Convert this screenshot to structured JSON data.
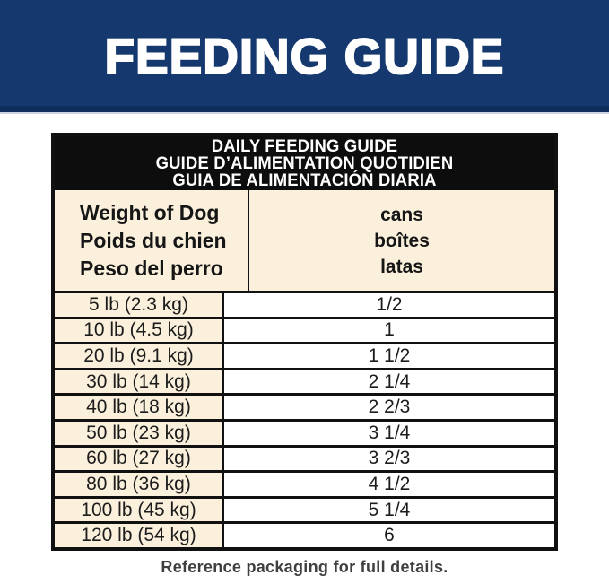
{
  "banner": {
    "title": "FEEDING GUIDE"
  },
  "table": {
    "title_lines": [
      "DAILY FEEDING GUIDE",
      "GUIDE D’ALIMENTATION QUOTIDIEN",
      "GUIA DE ALIMENTACIÓN DIARIA"
    ],
    "header": {
      "weight_lines": [
        "Weight of Dog",
        "Poids du chien",
        "Peso del perro"
      ],
      "cans_lines": [
        "cans",
        "boîtes",
        "latas"
      ]
    },
    "rows": [
      {
        "weight": "5 lb (2.3 kg)",
        "cans": "1/2"
      },
      {
        "weight": "10 lb (4.5 kg)",
        "cans": "1"
      },
      {
        "weight": "20 lb (9.1 kg)",
        "cans": "1 1/2"
      },
      {
        "weight": "30 lb (14 kg)",
        "cans": "2 1/4"
      },
      {
        "weight": "40 lb (18 kg)",
        "cans": "2 2/3"
      },
      {
        "weight": "50 lb (23 kg)",
        "cans": "3 1/4"
      },
      {
        "weight": "60 lb (27 kg)",
        "cans": "3 2/3"
      },
      {
        "weight": "80 lb (36 kg)",
        "cans": "4 1/2"
      },
      {
        "weight": "100 lb (45 kg)",
        "cans": "5 1/4"
      },
      {
        "weight": "120 lb (54 kg)",
        "cans": "6"
      }
    ]
  },
  "footer": {
    "note": "Reference packaging for full details."
  },
  "colors": {
    "banner_navy": "#15386e",
    "banner_navy_dark": "#0e2d5c",
    "title_band_black": "#0d0d0d",
    "cream_cell": "#faf0dc",
    "white_cell": "#ffffff",
    "border_black": "#111111",
    "footer_gray": "#3f3f3f"
  }
}
